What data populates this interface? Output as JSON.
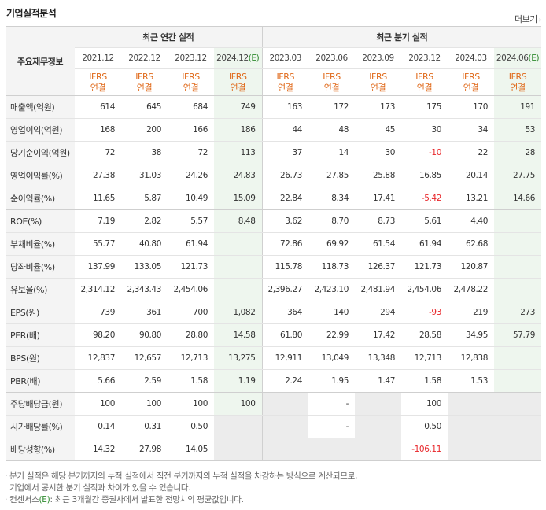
{
  "header": {
    "title": "기업실적분석",
    "more": "더보기",
    "more_arrow": "›"
  },
  "table": {
    "corner_label": "주요재무정보",
    "group_annual": "최근 연간 실적",
    "group_quarter": "최근 분기 실적",
    "periods": [
      "2021.12",
      "2022.12",
      "2023.12",
      "2024.12",
      "2023.03",
      "2023.06",
      "2023.09",
      "2023.12",
      "2024.03",
      "2024.06"
    ],
    "period_suffix_est": "(E)",
    "ifrs_line1": "IFRS",
    "ifrs_line2": "연결",
    "rows": [
      {
        "label": "매출액(억원)",
        "values": [
          "614",
          "645",
          "684",
          "749",
          "163",
          "172",
          "173",
          "175",
          "170",
          "191"
        ]
      },
      {
        "label": "영업이익(억원)",
        "values": [
          "168",
          "200",
          "166",
          "186",
          "44",
          "48",
          "45",
          "30",
          "34",
          "53"
        ]
      },
      {
        "label": "당기순이익(억원)",
        "values": [
          "72",
          "38",
          "72",
          "113",
          "37",
          "14",
          "30",
          "-10",
          "22",
          "28"
        ]
      },
      {
        "label": "영업이익률(%)",
        "values": [
          "27.38",
          "31.03",
          "24.26",
          "24.83",
          "26.73",
          "27.85",
          "25.88",
          "16.85",
          "20.14",
          "27.75"
        ]
      },
      {
        "label": "순이익률(%)",
        "values": [
          "11.65",
          "5.87",
          "10.49",
          "15.09",
          "22.84",
          "8.34",
          "17.41",
          "-5.42",
          "13.21",
          "14.66"
        ]
      },
      {
        "label": "ROE(%)",
        "values": [
          "7.19",
          "2.82",
          "5.57",
          "8.48",
          "3.62",
          "8.70",
          "8.73",
          "5.61",
          "4.40",
          ""
        ]
      },
      {
        "label": "부채비율(%)",
        "values": [
          "55.77",
          "40.80",
          "61.94",
          "",
          "72.86",
          "69.92",
          "61.54",
          "61.94",
          "62.68",
          ""
        ]
      },
      {
        "label": "당좌비율(%)",
        "values": [
          "137.99",
          "133.05",
          "121.73",
          "",
          "115.78",
          "118.73",
          "126.37",
          "121.73",
          "120.87",
          ""
        ]
      },
      {
        "label": "유보율(%)",
        "values": [
          "2,314.12",
          "2,343.43",
          "2,454.06",
          "",
          "2,396.27",
          "2,423.10",
          "2,481.94",
          "2,454.06",
          "2,478.22",
          ""
        ]
      },
      {
        "label": "EPS(원)",
        "values": [
          "739",
          "361",
          "700",
          "1,082",
          "364",
          "140",
          "294",
          "-93",
          "219",
          "273"
        ]
      },
      {
        "label": "PER(배)",
        "values": [
          "98.20",
          "90.80",
          "28.80",
          "14.58",
          "61.80",
          "22.99",
          "17.42",
          "28.58",
          "34.95",
          "57.79"
        ]
      },
      {
        "label": "BPS(원)",
        "values": [
          "12,837",
          "12,657",
          "12,713",
          "13,275",
          "12,911",
          "13,049",
          "13,348",
          "12,713",
          "12,838",
          ""
        ]
      },
      {
        "label": "PBR(배)",
        "values": [
          "5.66",
          "2.59",
          "1.58",
          "1.19",
          "2.24",
          "1.95",
          "1.47",
          "1.58",
          "1.53",
          ""
        ]
      },
      {
        "label": "주당배당금(원)",
        "values": [
          "100",
          "100",
          "100",
          "100",
          "",
          "-",
          "",
          "100",
          "",
          ""
        ]
      },
      {
        "label": "시가배당률(%)",
        "values": [
          "0.14",
          "0.31",
          "0.50",
          "",
          "",
          "-",
          "",
          "0.50",
          "",
          ""
        ]
      },
      {
        "label": "배당성향(%)",
        "values": [
          "14.32",
          "27.98",
          "14.05",
          "",
          "",
          "",
          "",
          "-106.11",
          "",
          ""
        ]
      }
    ]
  },
  "notes": {
    "line1": "· 분기 실적은 해당 분기까지의 누적 실적에서 직전 분기까지의 누적 실적을 차감하는 방식으로 계산되므로,",
    "line2": "  기업에서 공시한 분기 실적과 차이가 있을 수 있습니다.",
    "line3_a": "· 컨센서스",
    "line3_e": "(E)",
    "line3_b": ": 최근 3개월간 증권사에서 발표한 전망치의 평균값입니다."
  }
}
